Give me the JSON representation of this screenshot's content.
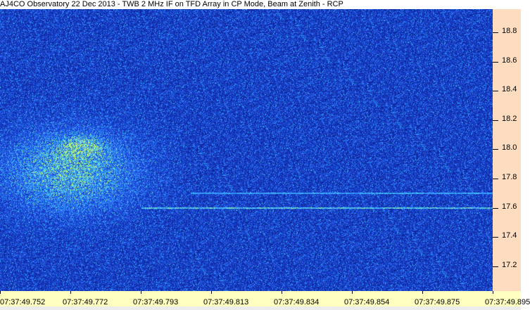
{
  "title": "AJ4CO Observatory 22 Dec 2013 - TWB 2 MHz IF on TFD Array in CP Mode, Beam at Zenith - RCP",
  "chart_data": {
    "type": "heatmap",
    "title": "AJ4CO Observatory 22 Dec 2013 - TWB 2 MHz IF on TFD Array in CP Mode, Beam at Zenith - RCP",
    "xlabel": "",
    "ylabel": "",
    "x_tick_labels": [
      "07:37:49.752",
      "07:37:49.772",
      "07:37:49.793",
      "07:37:49.813",
      "07:37:49.834",
      "07:37:49.854",
      "07:37:49.875",
      "07:37:49.895"
    ],
    "y_tick_labels": [
      "18.8",
      "18.6",
      "18.4",
      "18.2",
      "18.0",
      "17.8",
      "17.6",
      "17.4",
      "17.2"
    ],
    "y_ticks": [
      18.8,
      18.6,
      18.4,
      18.2,
      18.0,
      17.8,
      17.6,
      17.4,
      17.2
    ],
    "ylim": [
      17.03,
      18.96
    ],
    "colormap": [
      "#0a1e8c",
      "#1b46d8",
      "#2f7cff",
      "#40d0ff",
      "#c8ff60"
    ],
    "features": {
      "burst_center_mhz": 17.85,
      "burst_time_range": [
        "07:37:49.752",
        "07:37:49.793"
      ],
      "narrowband_lines_mhz": [
        17.7,
        17.6
      ]
    }
  },
  "colors": {
    "y_axis_bg": "#fddcc0",
    "x_axis_bg": "#ffffc0"
  }
}
